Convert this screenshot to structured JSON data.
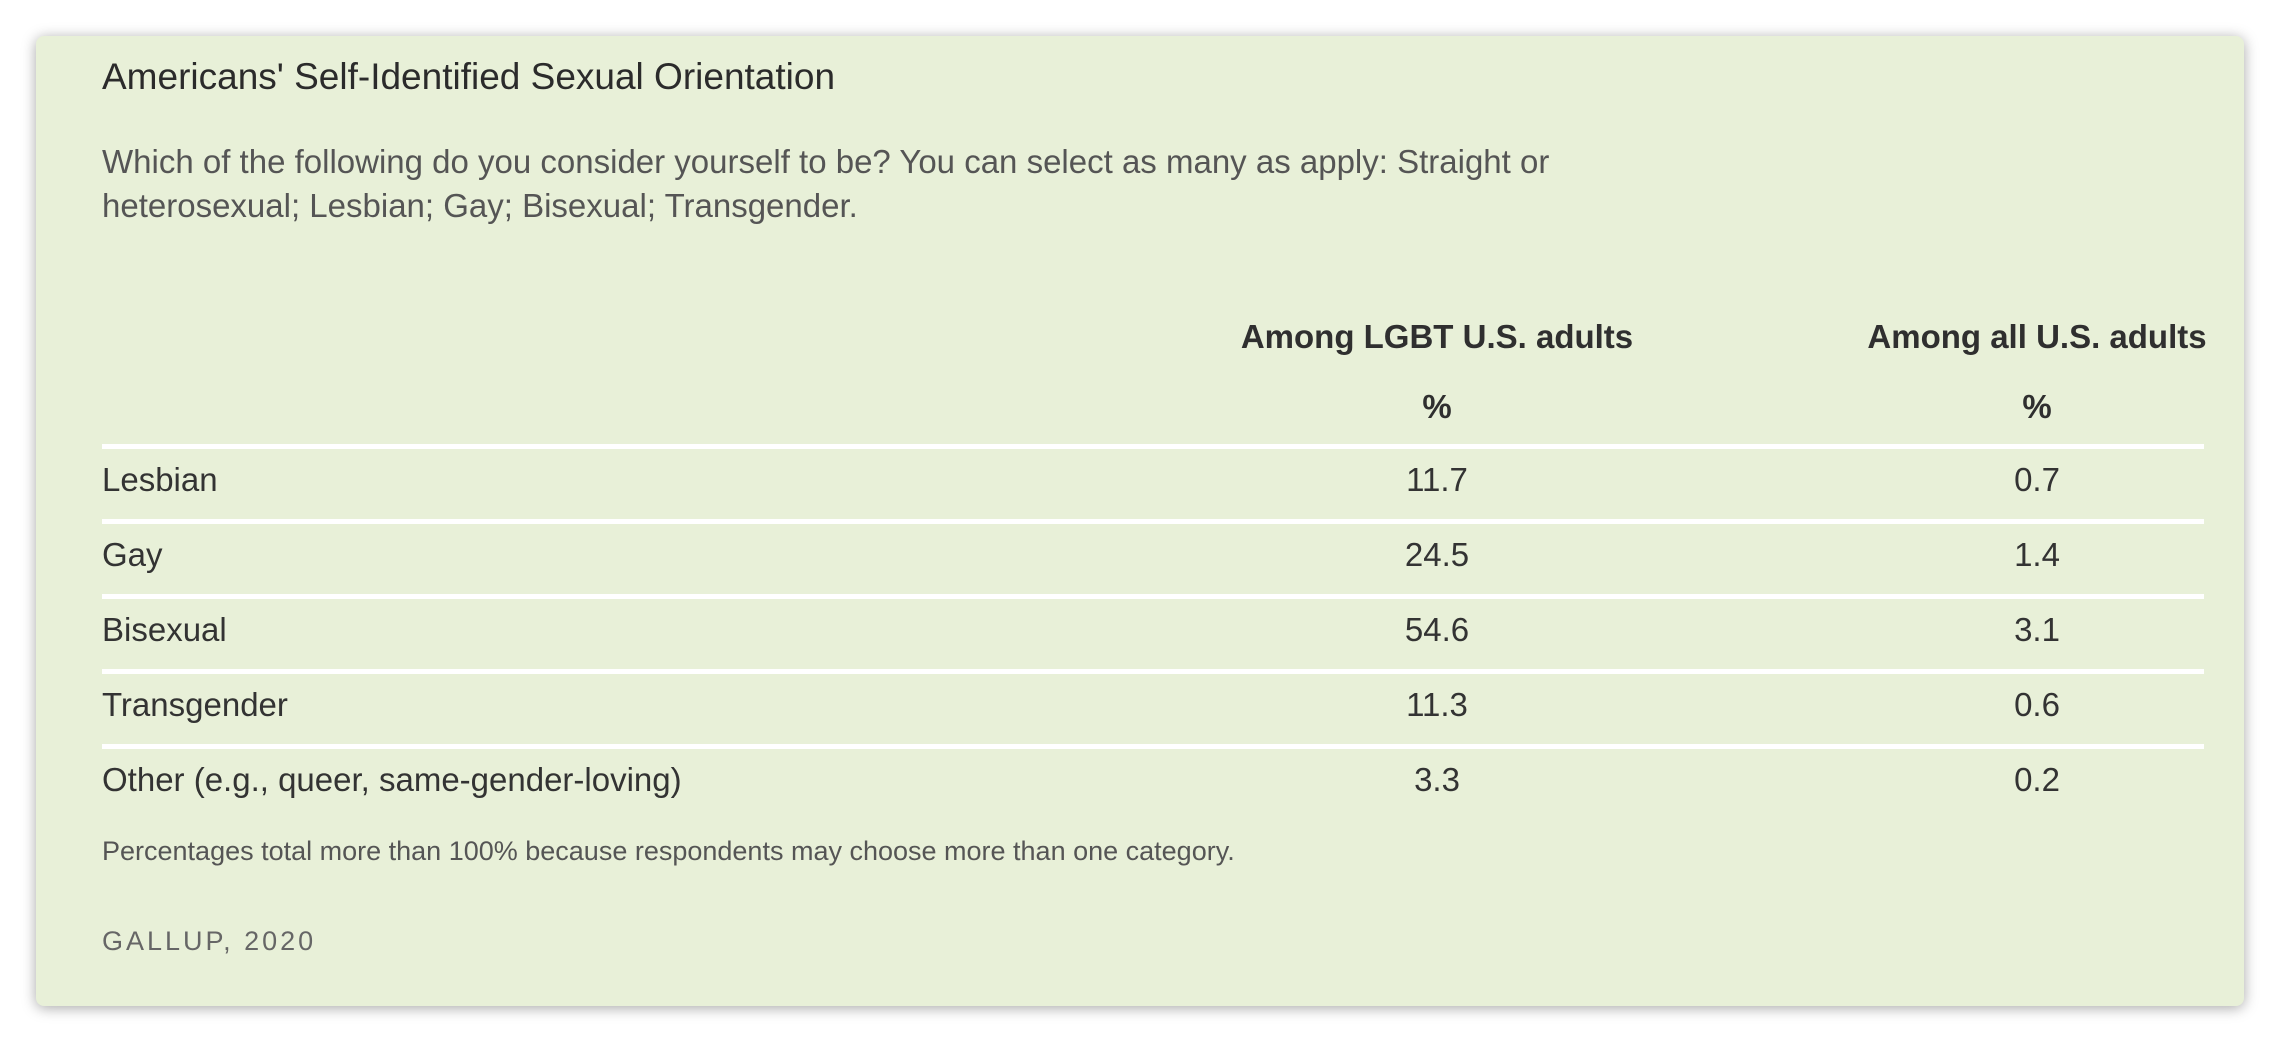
{
  "chart_data": {
    "type": "table",
    "title": "Americans' Self-Identified Sexual Orientation",
    "subtitle": "Which of the following do you consider yourself to be? You can select as many as apply: Straight or heterosexual; Lesbian; Gay; Bisexual; Transgender.",
    "columns": [
      "Among LGBT U.S. adults",
      "Among all U.S. adults"
    ],
    "units": [
      "%",
      "%"
    ],
    "rows": [
      {
        "label": "Lesbian",
        "values": [
          "11.7",
          "0.7"
        ]
      },
      {
        "label": "Gay",
        "values": [
          "24.5",
          "1.4"
        ]
      },
      {
        "label": "Bisexual",
        "values": [
          "54.6",
          "3.1"
        ]
      },
      {
        "label": "Transgender",
        "values": [
          "11.3",
          "0.6"
        ]
      },
      {
        "label": "Other (e.g., queer, same-gender-loving)",
        "values": [
          "3.3",
          "0.2"
        ]
      }
    ],
    "note": "Percentages total more than 100% because respondents may choose more than one category.",
    "source": "GALLUP, 2020"
  },
  "colors": {
    "card_background": "#e8f0d8",
    "row_divider": "#ffffff"
  }
}
